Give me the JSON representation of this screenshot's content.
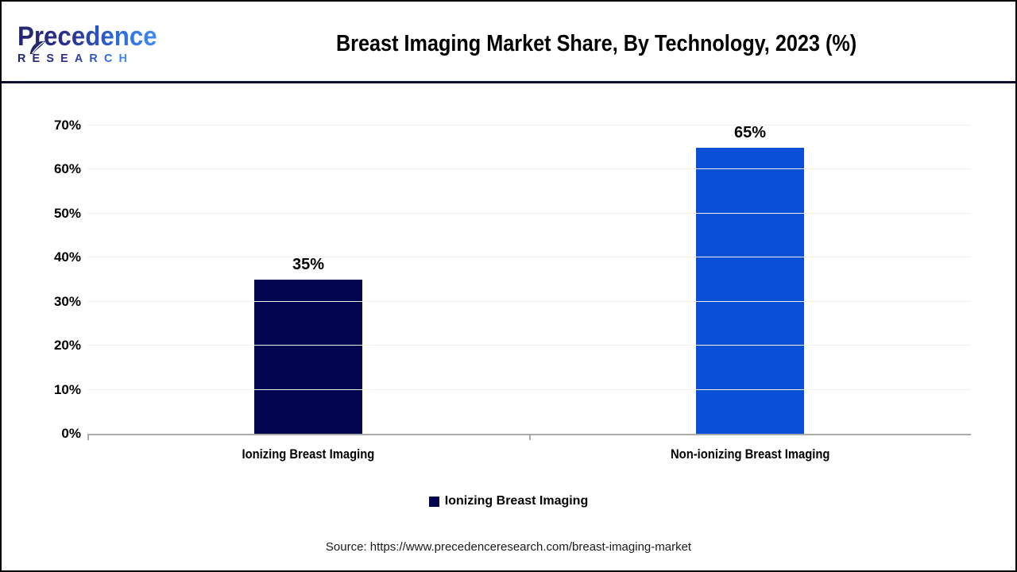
{
  "header": {
    "logo": {
      "brand": "Precedence",
      "sub": "RESEARCH"
    }
  },
  "footer": {
    "source": "Source: https://www.precedenceresearch.com/breast-imaging-market"
  },
  "chart_data": {
    "type": "bar",
    "title": "Breast Imaging Market Share, By Technology, 2023 (%)",
    "categories": [
      "Ionizing Breast Imaging",
      "Non-ionizing Breast Imaging"
    ],
    "values": [
      35,
      65
    ],
    "value_labels": [
      "35%",
      "65%"
    ],
    "bar_colors": [
      "#01054E",
      "#0A50D7"
    ],
    "ylim": [
      0,
      70
    ],
    "ytick_step": 10,
    "ytick_labels": [
      "0%",
      "10%",
      "20%",
      "30%",
      "40%",
      "50%",
      "60%",
      "70%"
    ],
    "grid": true,
    "axis_color": "#ababab",
    "gridline_color": "#efefef",
    "legend": {
      "position": "bottom",
      "entries": [
        {
          "label": "Ionizing Breast Imaging",
          "color": "#01054E"
        }
      ]
    }
  }
}
